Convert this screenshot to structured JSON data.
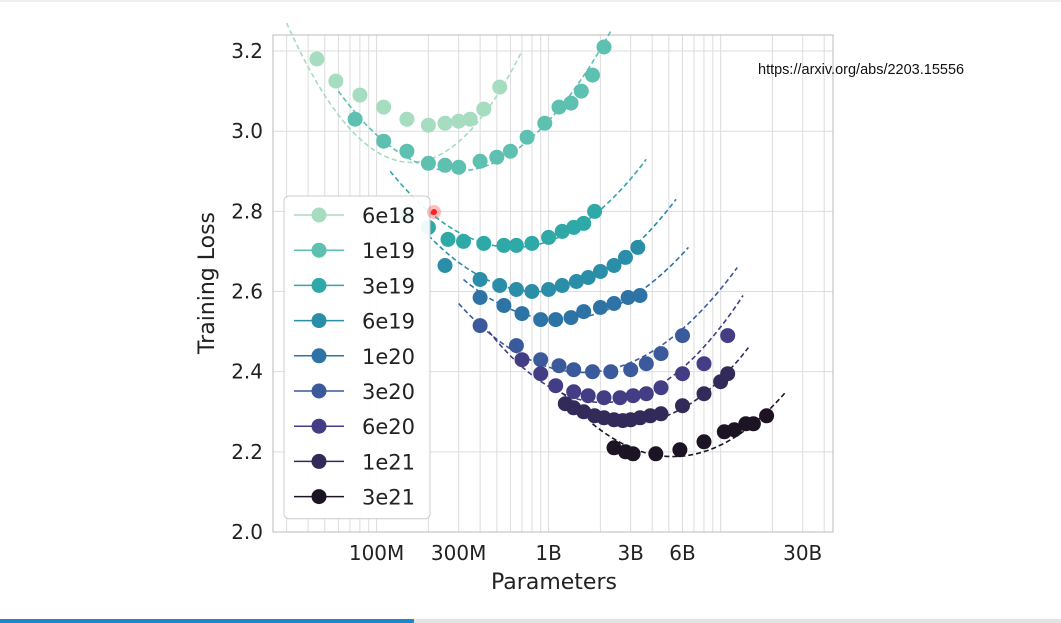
{
  "source_url": "https://arxiv.org/abs/2203.15556",
  "playback_progress_fraction": 0.39,
  "chart_data": {
    "type": "scatter",
    "title": "",
    "xlabel": "Parameters",
    "ylabel": "Training Loss",
    "x_scale": "log",
    "xlim": [
      25000000,
      45000000000
    ],
    "ylim": [
      2.0,
      3.24
    ],
    "x_ticks": [
      {
        "value": 100000000,
        "label": "100M"
      },
      {
        "value": 300000000,
        "label": "300M"
      },
      {
        "value": 1000000000,
        "label": "1B"
      },
      {
        "value": 3000000000,
        "label": "3B"
      },
      {
        "value": 6000000000,
        "label": "6B"
      },
      {
        "value": 30000000000,
        "label": "30B"
      }
    ],
    "y_ticks": [
      {
        "value": 2.0,
        "label": "2.0"
      },
      {
        "value": 2.2,
        "label": "2.2"
      },
      {
        "value": 2.4,
        "label": "2.4"
      },
      {
        "value": 2.6,
        "label": "2.6"
      },
      {
        "value": 2.8,
        "label": "2.8"
      },
      {
        "value": 3.0,
        "label": "3.0"
      },
      {
        "value": 3.2,
        "label": "3.2"
      }
    ],
    "grid": true,
    "legend_position": "lower-left",
    "series": [
      {
        "name": "6e18",
        "color": "#a6dcc0",
        "x": [
          45000000,
          58000000,
          80000000,
          110000000,
          150000000,
          200000000,
          250000000,
          300000000,
          350000000,
          420000000,
          520000000
        ],
        "y": [
          3.18,
          3.125,
          3.09,
          3.06,
          3.03,
          3.015,
          3.02,
          3.025,
          3.03,
          3.055,
          3.11
        ],
        "fit": [
          [
            30000000,
            3.27
          ],
          [
            520000000,
            3.1
          ],
          [
            700000000,
            3.2
          ]
        ]
      },
      {
        "name": "1e19",
        "color": "#5ec0b0",
        "x": [
          75000000,
          110000000,
          150000000,
          200000000,
          250000000,
          300000000,
          400000000,
          500000000,
          600000000,
          750000000,
          950000000,
          1150000000,
          1350000000,
          1550000000,
          1800000000,
          2100000000
        ],
        "y": [
          3.03,
          2.975,
          2.95,
          2.92,
          2.915,
          2.91,
          2.925,
          2.935,
          2.95,
          2.985,
          3.02,
          3.06,
          3.07,
          3.1,
          3.14,
          3.21
        ],
        "fit": [
          [
            60000000,
            3.1
          ],
          [
            280000000,
            2.9
          ],
          [
            2300000000,
            3.25
          ]
        ]
      },
      {
        "name": "3e19",
        "color": "#2ea9a8",
        "x": [
          150000000,
          200000000,
          260000000,
          320000000,
          420000000,
          550000000,
          650000000,
          800000000,
          1000000000,
          1200000000,
          1400000000,
          1600000000,
          1850000000
        ],
        "y": [
          2.79,
          2.76,
          2.73,
          2.725,
          2.72,
          2.715,
          2.715,
          2.72,
          2.735,
          2.75,
          2.76,
          2.77,
          2.8
        ],
        "fit": [
          [
            120000000,
            2.9
          ],
          [
            600000000,
            2.71
          ],
          [
            3700000000,
            2.93
          ]
        ]
      },
      {
        "name": "6e19",
        "color": "#2a8ea8",
        "x": [
          250000000,
          400000000,
          520000000,
          650000000,
          800000000,
          1000000000,
          1200000000,
          1450000000,
          1700000000,
          2000000000,
          2400000000,
          2800000000,
          3300000000
        ],
        "y": [
          2.665,
          2.63,
          2.615,
          2.605,
          2.6,
          2.605,
          2.615,
          2.625,
          2.635,
          2.65,
          2.665,
          2.685,
          2.71
        ],
        "fit": [
          [
            200000000,
            2.74
          ],
          [
            800000000,
            2.6
          ],
          [
            5500000000,
            2.83
          ]
        ]
      },
      {
        "name": "1e20",
        "color": "#2d73a6",
        "x": [
          400000000,
          550000000,
          700000000,
          900000000,
          1100000000,
          1350000000,
          1600000000,
          2000000000,
          2400000000,
          2900000000,
          3400000000
        ],
        "y": [
          2.585,
          2.565,
          2.545,
          2.53,
          2.53,
          2.535,
          2.55,
          2.56,
          2.57,
          2.585,
          2.59
        ],
        "fit": [
          [
            320000000,
            2.63
          ],
          [
            1100000000,
            2.53
          ],
          [
            6500000000,
            2.71
          ]
        ]
      },
      {
        "name": "3e20",
        "color": "#3a5a9c",
        "x": [
          400000000,
          650000000,
          900000000,
          1150000000,
          1400000000,
          1800000000,
          2300000000,
          3000000000,
          3700000000,
          4500000000,
          6000000000
        ],
        "y": [
          2.515,
          2.465,
          2.43,
          2.415,
          2.405,
          2.4,
          2.4,
          2.405,
          2.42,
          2.445,
          2.49
        ],
        "fit": [
          [
            300000000,
            2.57
          ],
          [
            1900000000,
            2.4
          ],
          [
            12500000000,
            2.66
          ]
        ]
      },
      {
        "name": "6e20",
        "color": "#423d84",
        "x": [
          700000000,
          900000000,
          1100000000,
          1400000000,
          1700000000,
          2100000000,
          2600000000,
          3100000000,
          3700000000,
          4500000000,
          6000000000,
          8000000000,
          11000000000
        ],
        "y": [
          2.43,
          2.395,
          2.365,
          2.35,
          2.34,
          2.335,
          2.335,
          2.34,
          2.345,
          2.36,
          2.395,
          2.42,
          2.49
        ],
        "fit": [
          [
            450000000,
            2.5
          ],
          [
            2800000000,
            2.33
          ],
          [
            13500000000,
            2.59
          ]
        ]
      },
      {
        "name": "1e21",
        "color": "#322b5a",
        "x": [
          1250000000,
          1400000000,
          1600000000,
          1850000000,
          2100000000,
          2400000000,
          2700000000,
          3000000000,
          3400000000,
          3900000000,
          4500000000,
          6000000000,
          8000000000,
          10000000000,
          11000000000
        ],
        "y": [
          2.32,
          2.31,
          2.3,
          2.29,
          2.285,
          2.28,
          2.278,
          2.28,
          2.285,
          2.29,
          2.295,
          2.315,
          2.345,
          2.375,
          2.395
        ],
        "fit": [
          [
            1100000000,
            2.36
          ],
          [
            3300000000,
            2.275
          ],
          [
            14500000000,
            2.46
          ]
        ]
      },
      {
        "name": "3e21",
        "color": "#1c1325",
        "x": [
          2400000000,
          2800000000,
          3100000000,
          4200000000,
          5800000000,
          8000000000,
          10500000000,
          12000000000,
          14000000000,
          15500000000,
          18500000000
        ],
        "y": [
          2.21,
          2.2,
          2.195,
          2.195,
          2.205,
          2.225,
          2.25,
          2.255,
          2.27,
          2.27,
          2.29
        ],
        "fit": [
          [
            1800000000,
            2.27
          ],
          [
            4500000000,
            2.19
          ],
          [
            24000000000,
            2.35
          ]
        ]
      }
    ]
  }
}
